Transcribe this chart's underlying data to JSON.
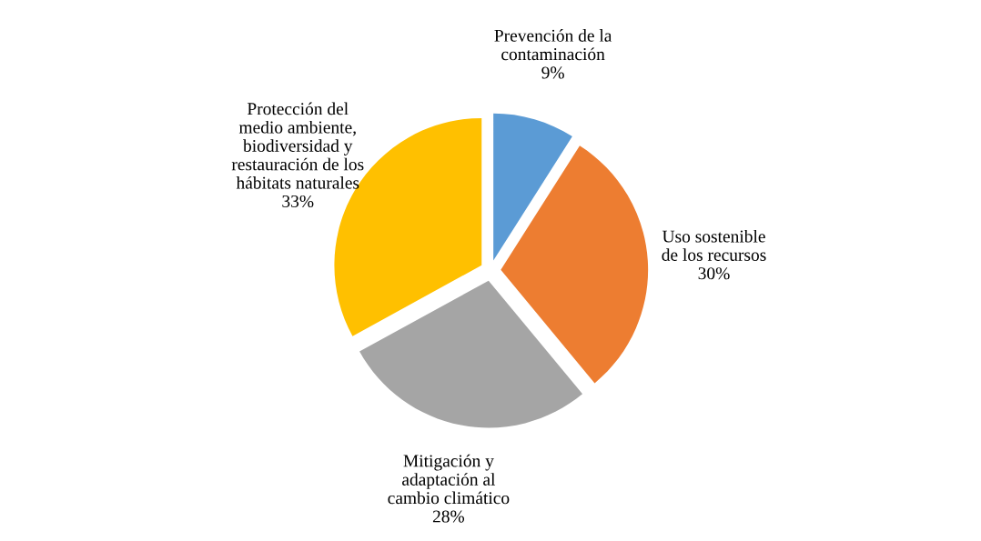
{
  "chart_data": {
    "type": "pie",
    "categories": [
      "Prevención de la\ncontaminación",
      "Uso sostenible\nde los recursos",
      "Mitigación y\nadaptación al\ncambio climático",
      "Protección del\nmedio ambiente,\nbiodiversidad y\nrestauración de los\nhábitats naturales"
    ],
    "values": [
      9,
      30,
      28,
      33
    ],
    "value_labels": [
      "9%",
      "30%",
      "28%",
      "33%"
    ],
    "colors": [
      "#5b9bd5",
      "#ed7d31",
      "#a5a5a5",
      "#ffc000"
    ]
  }
}
